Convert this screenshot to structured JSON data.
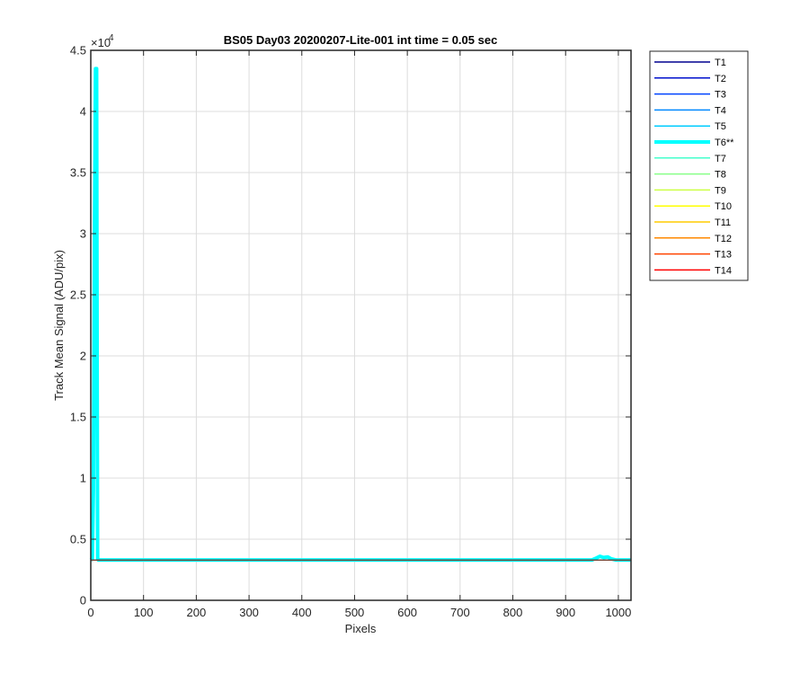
{
  "chart_data": {
    "type": "line",
    "title": "BS05 Day03 20200207-Lite-001 int time = 0.05 sec",
    "xlabel": "Pixels",
    "ylabel": "Track Mean Signal (ADU/pix)",
    "xlim": [
      0,
      1024
    ],
    "ylim": [
      0,
      45000
    ],
    "x_ticks": [
      0,
      100,
      200,
      300,
      400,
      500,
      600,
      700,
      800,
      900,
      1000
    ],
    "y_ticks": [
      0,
      5000,
      10000,
      15000,
      20000,
      25000,
      30000,
      35000,
      40000,
      45000
    ],
    "y_tick_labels": [
      "0",
      "0.5",
      "1",
      "1.5",
      "2",
      "2.5",
      "3",
      "3.5",
      "4",
      "4.5"
    ],
    "y_multiplier": "×10",
    "y_multiplier_exp": "4",
    "grid": true,
    "legend_position": "outside-right",
    "series": [
      {
        "name": "T1",
        "color": "#00008f",
        "highlight": false,
        "points": [
          [
            0,
            3300
          ],
          [
            1024,
            3300
          ]
        ]
      },
      {
        "name": "T2",
        "color": "#0010cc",
        "highlight": false,
        "points": [
          [
            0,
            3300
          ],
          [
            1024,
            3300
          ]
        ]
      },
      {
        "name": "T3",
        "color": "#0044ff",
        "highlight": false,
        "points": [
          [
            0,
            3300
          ],
          [
            1024,
            3300
          ]
        ]
      },
      {
        "name": "T4",
        "color": "#0088ff",
        "highlight": false,
        "points": [
          [
            0,
            3300
          ],
          [
            1024,
            3300
          ]
        ]
      },
      {
        "name": "T5",
        "color": "#00ccff",
        "highlight": false,
        "points": [
          [
            0,
            3300
          ],
          [
            1024,
            3300
          ]
        ]
      },
      {
        "name": "T6**",
        "color": "#00ffff",
        "highlight": true,
        "points": [
          [
            0,
            3300
          ],
          [
            3,
            3400
          ],
          [
            5,
            9000
          ],
          [
            7,
            30000
          ],
          [
            9,
            43500
          ],
          [
            11,
            43500
          ],
          [
            12,
            20000
          ],
          [
            13,
            3400
          ],
          [
            14,
            3300
          ],
          [
            950,
            3300
          ],
          [
            958,
            3450
          ],
          [
            965,
            3600
          ],
          [
            972,
            3500
          ],
          [
            980,
            3550
          ],
          [
            986,
            3400
          ],
          [
            995,
            3300
          ],
          [
            1024,
            3300
          ]
        ]
      },
      {
        "name": "T7",
        "color": "#44ffcc",
        "highlight": false,
        "points": [
          [
            0,
            3300
          ],
          [
            1024,
            3300
          ]
        ]
      },
      {
        "name": "T8",
        "color": "#88ff88",
        "highlight": false,
        "points": [
          [
            0,
            3300
          ],
          [
            1024,
            3300
          ]
        ]
      },
      {
        "name": "T9",
        "color": "#ccff44",
        "highlight": false,
        "points": [
          [
            0,
            3300
          ],
          [
            1024,
            3300
          ]
        ]
      },
      {
        "name": "T10",
        "color": "#ffff00",
        "highlight": false,
        "points": [
          [
            0,
            3300
          ],
          [
            1024,
            3300
          ]
        ]
      },
      {
        "name": "T11",
        "color": "#ffcc00",
        "highlight": false,
        "points": [
          [
            0,
            3300
          ],
          [
            1024,
            3300
          ]
        ]
      },
      {
        "name": "T12",
        "color": "#ff8800",
        "highlight": false,
        "points": [
          [
            0,
            3300
          ],
          [
            1024,
            3300
          ]
        ]
      },
      {
        "name": "T13",
        "color": "#ff4400",
        "highlight": false,
        "points": [
          [
            0,
            3300
          ],
          [
            1024,
            3300
          ]
        ]
      },
      {
        "name": "T14",
        "color": "#ff0000",
        "highlight": false,
        "points": [
          [
            0,
            3300
          ],
          [
            1024,
            3300
          ]
        ]
      },
      {
        "name": "",
        "color": "#505050",
        "highlight": false,
        "points": [
          [
            0,
            3300
          ],
          [
            1024,
            3300
          ]
        ]
      }
    ]
  }
}
